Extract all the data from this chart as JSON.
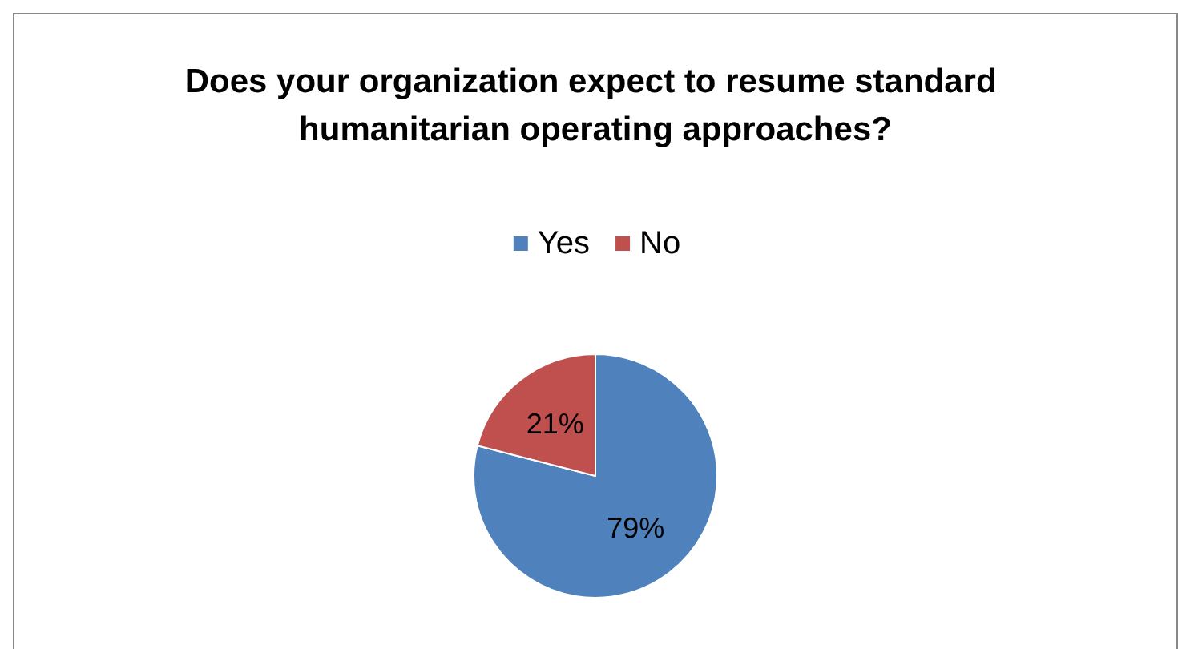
{
  "chart_data": {
    "type": "pie",
    "title": "Does your organization expect to resume standard humanitarian operating approaches?",
    "categories": [
      "Yes",
      "No"
    ],
    "values": [
      79,
      21
    ],
    "colors": [
      "#4f81bd",
      "#c0504d"
    ],
    "value_labels": [
      "79%",
      "21%"
    ],
    "legend": "top"
  }
}
